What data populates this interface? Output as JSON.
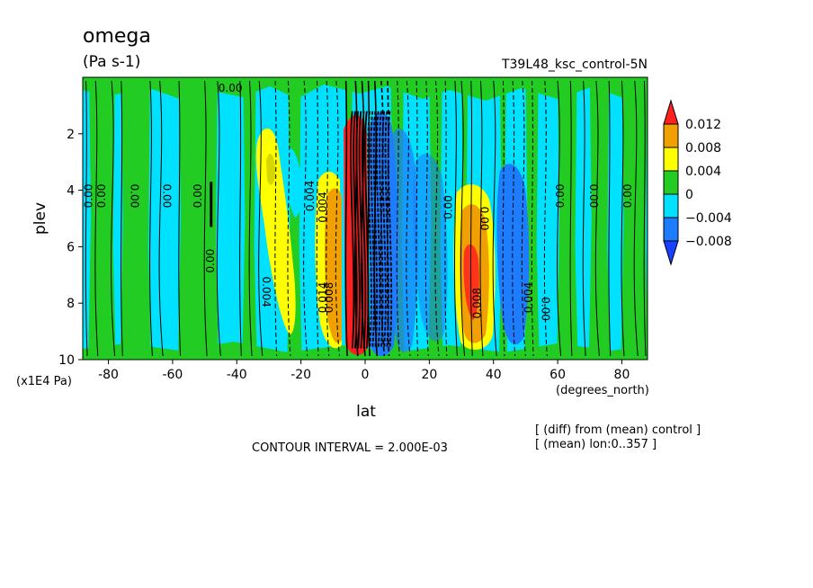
{
  "chart_data": {
    "type": "heatmap",
    "title": "omega",
    "units": "(Pa s-1)",
    "experiment": "T39L48_ksc_control-5N",
    "xlabel": "lat",
    "xunits": "(degrees_north)",
    "ylabel": "plev",
    "yunits": "(x1E4 Pa)",
    "xlim": [
      -88,
      88
    ],
    "ylim": [
      10,
      0
    ],
    "xticks": [
      "-80",
      "-60",
      "-40",
      "-20",
      "0",
      "20",
      "40",
      "60",
      "80"
    ],
    "xtick_values": [
      -80,
      -60,
      -40,
      -20,
      0,
      20,
      40,
      60,
      80
    ],
    "yticks": [
      "2",
      "4",
      "6",
      "8",
      "10"
    ],
    "ytick_values": [
      2,
      4,
      6,
      8,
      10
    ],
    "contour_interval": "CONTOUR INTERVAL = 2.000E-03",
    "notes": [
      "[ (diff) from (mean) control ]",
      "[ (mean) lon:0..357 ]"
    ],
    "colorbar": {
      "labels": [
        "0.012",
        "0.008",
        "0.004",
        "0",
        "−0.004",
        "−0.008"
      ],
      "levels": [
        0.012,
        0.008,
        0.004,
        0,
        -0.004,
        -0.008
      ],
      "colors": [
        "#ff2020",
        "#f0a000",
        "#ffff00",
        "#22cc22",
        "#00e0ff",
        "#1e7cff",
        "#1840ff"
      ]
    },
    "contour_labels": [
      {
        "text": "0.00",
        "x": -86,
        "y": 4.2,
        "rot": -90
      },
      {
        "text": "0.00",
        "x": -82,
        "y": 4.2,
        "rot": -90
      },
      {
        "text": "0.00",
        "x": -72,
        "y": 4.2,
        "rot": 90
      },
      {
        "text": "0.00",
        "x": -62,
        "y": 4.2,
        "rot": 90
      },
      {
        "text": "0.00",
        "x": -52,
        "y": 4.2,
        "rot": -90
      },
      {
        "text": "0.00",
        "x": -48,
        "y": 6.5,
        "rot": -90
      },
      {
        "text": "0.00",
        "x": -42,
        "y": 0.4,
        "rot": 0
      },
      {
        "text": "0.004",
        "x": -31,
        "y": 7.6,
        "rot": 90
      },
      {
        "text": "0.004",
        "x": -17,
        "y": 4.2,
        "rot": -90
      },
      {
        "text": "0.004",
        "x": -13,
        "y": 4.6,
        "rot": -90
      },
      {
        "text": "0.008",
        "x": -11,
        "y": 7.8,
        "rot": -90
      },
      {
        "text": "0.014",
        "x": -13,
        "y": 7.8,
        "rot": -90
      },
      {
        "text": "0.00",
        "x": 26,
        "y": 4.6,
        "rot": -90
      },
      {
        "text": "0.00",
        "x": 37,
        "y": 5.0,
        "rot": 90
      },
      {
        "text": "0.008",
        "x": 35,
        "y": 8.0,
        "rot": -90
      },
      {
        "text": "0.004",
        "x": 51,
        "y": 7.8,
        "rot": -90
      },
      {
        "text": "0.00",
        "x": 56,
        "y": 8.2,
        "rot": 90
      },
      {
        "text": "0.00",
        "x": 61,
        "y": 4.2,
        "rot": -90
      },
      {
        "text": "0.00",
        "x": 71,
        "y": 4.2,
        "rot": 90
      },
      {
        "text": "0.00",
        "x": 82,
        "y": 4.2,
        "rot": -90
      }
    ]
  }
}
